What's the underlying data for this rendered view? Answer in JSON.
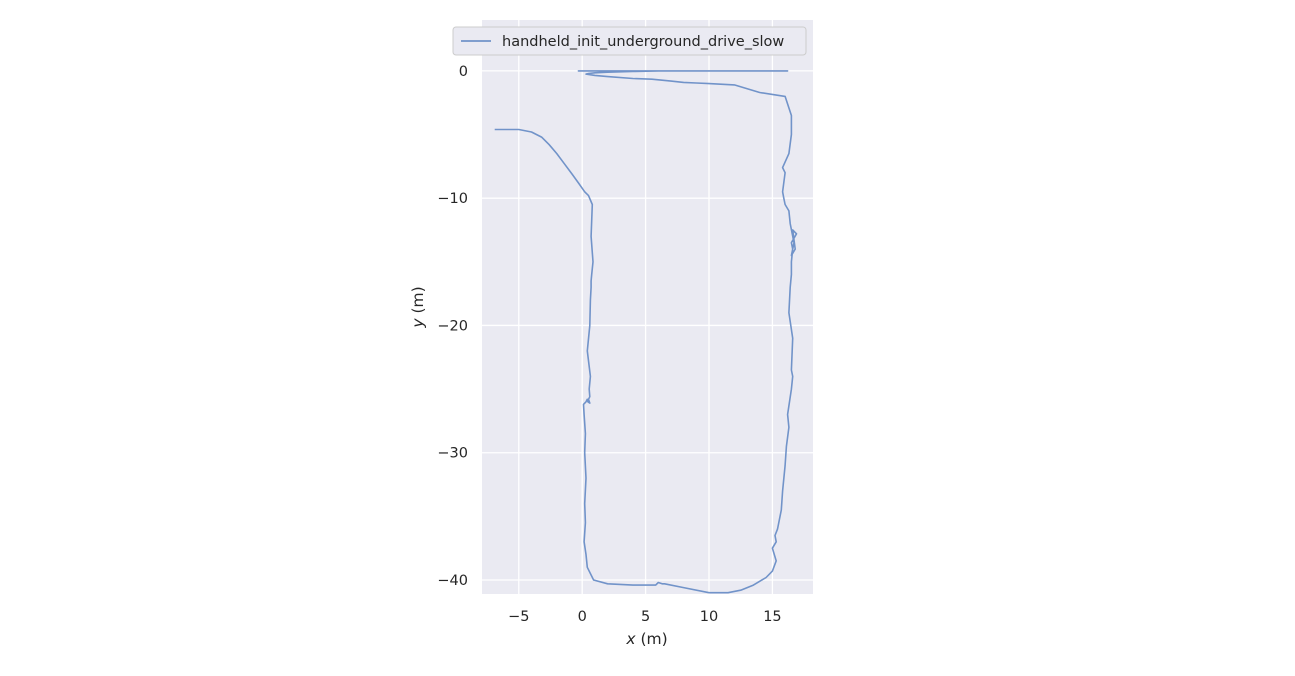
{
  "chart_data": {
    "type": "line",
    "xlabel_var": "x",
    "xlabel_unit": "(m)",
    "ylabel_var": "y",
    "ylabel_unit": "(m)",
    "xlim": [
      -7.9,
      18.2
    ],
    "ylim": [
      -41.1,
      4.0
    ],
    "x_ticks": [
      -5,
      0,
      5,
      10,
      15
    ],
    "x_tick_labels": [
      "−5",
      "0",
      "5",
      "10",
      "15"
    ],
    "y_ticks": [
      0,
      -10,
      -20,
      -30,
      -40
    ],
    "y_tick_labels": [
      "0",
      "−10",
      "−20",
      "−30",
      "−40"
    ],
    "grid": true,
    "legend_position": "top",
    "background_color": "#eaeaf2",
    "grid_color": "#ffffff",
    "series": [
      {
        "name": "handheld_init_underground_drive_slow",
        "color": "#7193c9",
        "x": [
          -6.9,
          -5.0,
          -4.0,
          -3.2,
          -2.6,
          -2.0,
          -1.4,
          -0.8,
          -0.3,
          0.2,
          0.5,
          0.8,
          0.7,
          0.85,
          0.75,
          0.7,
          0.7,
          0.65,
          0.6,
          0.4,
          0.65,
          0.55,
          0.6,
          0.5,
          0.55,
          0.5,
          0.6,
          0.45,
          0.4,
          0.3,
          0.1,
          0.15,
          0.25,
          0.2,
          0.3,
          0.2,
          0.25,
          0.15,
          0.3,
          0.4,
          0.9,
          2.0,
          4.0,
          5.8,
          6.0,
          6.3,
          6.5,
          8.0,
          10.0,
          11.5,
          12.5,
          13.5,
          14.5,
          15.0,
          15.3,
          15.0,
          15.3,
          15.2,
          15.4,
          15.7,
          15.8,
          16.0,
          16.1,
          16.3,
          16.2,
          16.5,
          16.6,
          16.5,
          16.6,
          16.3,
          16.4,
          16.5,
          16.5,
          16.6,
          16.5,
          16.9,
          16.6,
          16.8,
          16.5,
          16.7,
          16.4,
          16.3,
          16.0,
          15.9,
          15.8,
          16.0,
          15.8,
          16.3,
          16.5,
          16.5,
          16.0,
          14.0,
          12.0,
          10.0,
          9.0,
          8.0,
          7.0,
          6.0,
          5.5,
          4.0,
          2.0,
          1.0,
          0.3,
          0.5,
          1.0,
          2.0,
          4.0,
          6.0,
          8.0,
          10.0,
          12.0,
          14.0,
          15.3,
          15.8,
          16.0,
          16.2,
          15.8,
          15.9,
          15.4,
          15.2,
          15.3,
          -0.3,
          0.1,
          -0.1,
          0.2
        ],
        "y": [
          -4.6,
          -4.6,
          -4.8,
          -5.2,
          -5.8,
          -6.5,
          -7.3,
          -8.1,
          -8.8,
          -9.5,
          -9.8,
          -10.5,
          -13.0,
          -15.0,
          -16.0,
          -16.5,
          -17.0,
          -18.0,
          -20.0,
          -22.0,
          -24.0,
          -25.0,
          -25.6,
          -25.8,
          -26.0,
          -25.8,
          -26.1,
          -26.0,
          -25.8,
          -26.0,
          -26.2,
          -27.0,
          -28.5,
          -30.0,
          -32.0,
          -34.0,
          -35.5,
          -37.0,
          -38.0,
          -39.0,
          -40.0,
          -40.3,
          -40.4,
          -40.4,
          -40.2,
          -40.3,
          -40.3,
          -40.6,
          -41.0,
          -41.0,
          -40.8,
          -40.4,
          -39.8,
          -39.3,
          -38.5,
          -37.5,
          -37.0,
          -36.5,
          -36.0,
          -34.5,
          -33.0,
          -31.0,
          -29.5,
          -28.0,
          -27.0,
          -25.0,
          -24.0,
          -23.5,
          -21.0,
          -19.0,
          -17.0,
          -16.0,
          -15.0,
          -14.0,
          -13.5,
          -12.8,
          -12.5,
          -14.0,
          -14.5,
          -13.5,
          -12.0,
          -11.0,
          -10.5,
          -10.0,
          -9.5,
          -8.0,
          -7.6,
          -6.5,
          -5.0,
          -3.5,
          -2.0,
          -1.7,
          -1.1,
          -1.0,
          -0.95,
          -0.9,
          -0.8,
          -0.7,
          -0.65,
          -0.6,
          -0.45,
          -0.35,
          -0.25,
          -0.2,
          -0.15,
          -0.1,
          -0.05,
          0.0,
          0.0,
          0.0,
          0.0,
          0.0,
          0.0,
          0.0,
          0.0,
          0.0,
          0.0,
          0.0,
          0.0,
          0.0,
          0.0,
          0.0,
          0.0,
          0.0,
          0.0
        ]
      }
    ]
  }
}
